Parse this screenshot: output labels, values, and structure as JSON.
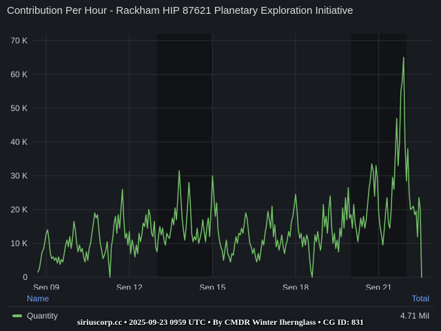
{
  "panel": {
    "title": "Contribution Per Hour  -  Rackham HIP 87621 Planetary Exploration Initiative"
  },
  "legend": {
    "name_header": "Name",
    "total_header": "Total",
    "series_name": "Quantity",
    "series_total": "4.71 Mil"
  },
  "footer": {
    "text": "siriuscorp.cc • 2025-09-23 0959 UTC • By CMDR Winter Ihernglass • CG ID: 831"
  },
  "colors": {
    "background": "#181b1f",
    "grid": "#2c3035",
    "shade": "#111316",
    "series": "#73bf69",
    "axis_text": "#ccccdc"
  },
  "chart_data": {
    "type": "line",
    "title": "Contribution Per Hour  -  Rackham HIP 87621 Planetary Exploration Initiative",
    "x_unit": "days (Sep 2025)",
    "x_ticks": [
      {
        "value": 9,
        "label": "Sep 09"
      },
      {
        "value": 12,
        "label": "Sep 12"
      },
      {
        "value": 15,
        "label": "Sep 15"
      },
      {
        "value": 18,
        "label": "Sep 18"
      },
      {
        "value": 21,
        "label": "Sep 21"
      }
    ],
    "y_ticks": [
      {
        "value": 0,
        "label": "0"
      },
      {
        "value": 10000,
        "label": "10 K"
      },
      {
        "value": 20000,
        "label": "20 K"
      },
      {
        "value": 30000,
        "label": "30 K"
      },
      {
        "value": 40000,
        "label": "40 K"
      },
      {
        "value": 50000,
        "label": "50 K"
      },
      {
        "value": 60000,
        "label": "60 K"
      },
      {
        "value": 70000,
        "label": "70 K"
      }
    ],
    "xlim": [
      8.5,
      22.9
    ],
    "ylim": [
      0,
      72000
    ],
    "shaded_ranges": [
      [
        13.0,
        15.0
      ],
      [
        20.0,
        22.0
      ]
    ],
    "grid": true,
    "legend_position": "bottom",
    "series": [
      {
        "name": "Quantity",
        "points": [
          [
            8.7,
            1500
          ],
          [
            8.75,
            2500
          ],
          [
            8.8,
            5000
          ],
          [
            8.85,
            7500
          ],
          [
            8.9,
            8200
          ],
          [
            8.95,
            10500
          ],
          [
            9.0,
            13000
          ],
          [
            9.05,
            14000
          ],
          [
            9.1,
            11000
          ],
          [
            9.15,
            7000
          ],
          [
            9.2,
            5500
          ],
          [
            9.25,
            6000
          ],
          [
            9.3,
            5000
          ],
          [
            9.35,
            5800
          ],
          [
            9.4,
            4200
          ],
          [
            9.45,
            6000
          ],
          [
            9.5,
            3800
          ],
          [
            9.55,
            5200
          ],
          [
            9.6,
            4500
          ],
          [
            9.65,
            7000
          ],
          [
            9.7,
            9500
          ],
          [
            9.75,
            11000
          ],
          [
            9.8,
            9000
          ],
          [
            9.85,
            12000
          ],
          [
            9.9,
            8500
          ],
          [
            9.95,
            11500
          ],
          [
            10.0,
            16500
          ],
          [
            10.05,
            14000
          ],
          [
            10.1,
            10000
          ],
          [
            10.15,
            7500
          ],
          [
            10.2,
            9500
          ],
          [
            10.25,
            7500
          ],
          [
            10.3,
            8500
          ],
          [
            10.35,
            6000
          ],
          [
            10.4,
            4500
          ],
          [
            10.45,
            7500
          ],
          [
            10.5,
            5000
          ],
          [
            10.55,
            8500
          ],
          [
            10.6,
            10000
          ],
          [
            10.65,
            13000
          ],
          [
            10.7,
            16000
          ],
          [
            10.75,
            19000
          ],
          [
            10.8,
            17500
          ],
          [
            10.85,
            18500
          ],
          [
            10.9,
            14000
          ],
          [
            10.95,
            10000
          ],
          [
            11.0,
            8000
          ],
          [
            11.05,
            5500
          ],
          [
            11.1,
            6500
          ],
          [
            11.15,
            8000
          ],
          [
            11.2,
            10500
          ],
          [
            11.25,
            4500
          ],
          [
            11.3,
            0
          ],
          [
            11.35,
            9000
          ],
          [
            11.4,
            11500
          ],
          [
            11.45,
            16000
          ],
          [
            11.5,
            18000
          ],
          [
            11.55,
            13000
          ],
          [
            11.6,
            18500
          ],
          [
            11.65,
            14500
          ],
          [
            11.7,
            20500
          ],
          [
            11.75,
            26000
          ],
          [
            11.8,
            17000
          ],
          [
            11.85,
            11500
          ],
          [
            11.9,
            13000
          ],
          [
            11.95,
            9500
          ],
          [
            12.0,
            13500
          ],
          [
            12.05,
            7000
          ],
          [
            12.1,
            11000
          ],
          [
            12.15,
            9000
          ],
          [
            12.2,
            6000
          ],
          [
            12.25,
            9500
          ],
          [
            12.3,
            7000
          ],
          [
            12.35,
            13000
          ],
          [
            12.4,
            10500
          ],
          [
            12.45,
            12500
          ],
          [
            12.5,
            16000
          ],
          [
            12.55,
            15000
          ],
          [
            12.6,
            18500
          ],
          [
            12.65,
            14500
          ],
          [
            12.7,
            20000
          ],
          [
            12.75,
            18000
          ],
          [
            12.8,
            13000
          ],
          [
            12.85,
            12000
          ],
          [
            12.9,
            16500
          ],
          [
            12.95,
            9000
          ],
          [
            13.0,
            7500
          ],
          [
            13.05,
            12000
          ],
          [
            13.1,
            15000
          ],
          [
            13.15,
            12500
          ],
          [
            13.2,
            14500
          ],
          [
            13.25,
            11000
          ],
          [
            13.3,
            9500
          ],
          [
            13.35,
            13000
          ],
          [
            13.4,
            12000
          ],
          [
            13.45,
            11500
          ],
          [
            13.5,
            14000
          ],
          [
            13.55,
            17500
          ],
          [
            13.6,
            15500
          ],
          [
            13.65,
            20500
          ],
          [
            13.7,
            17000
          ],
          [
            13.75,
            23500
          ],
          [
            13.8,
            31500
          ],
          [
            13.85,
            25000
          ],
          [
            13.9,
            18000
          ],
          [
            13.95,
            14000
          ],
          [
            14.0,
            11000
          ],
          [
            14.05,
            15000
          ],
          [
            14.1,
            21000
          ],
          [
            14.15,
            28000
          ],
          [
            14.2,
            22000
          ],
          [
            14.25,
            13000
          ],
          [
            14.3,
            10500
          ],
          [
            14.35,
            12000
          ],
          [
            14.4,
            11000
          ],
          [
            14.45,
            14500
          ],
          [
            14.5,
            10000
          ],
          [
            14.55,
            11500
          ],
          [
            14.6,
            13500
          ],
          [
            14.65,
            17000
          ],
          [
            14.7,
            13500
          ],
          [
            14.75,
            10500
          ],
          [
            14.8,
            15000
          ],
          [
            14.85,
            17500
          ],
          [
            14.9,
            12000
          ],
          [
            14.95,
            20000
          ],
          [
            15.0,
            30000
          ],
          [
            15.05,
            24000
          ],
          [
            15.1,
            18000
          ],
          [
            15.15,
            22000
          ],
          [
            15.2,
            14000
          ],
          [
            15.25,
            11000
          ],
          [
            15.3,
            9000
          ],
          [
            15.35,
            8000
          ],
          [
            15.4,
            5000
          ],
          [
            15.45,
            8000
          ],
          [
            15.5,
            11000
          ],
          [
            15.55,
            7000
          ],
          [
            15.6,
            6000
          ],
          [
            15.65,
            4500
          ],
          [
            15.7,
            7000
          ],
          [
            15.75,
            6500
          ],
          [
            15.8,
            9500
          ],
          [
            15.85,
            12000
          ],
          [
            15.9,
            10000
          ],
          [
            15.95,
            13000
          ],
          [
            16.0,
            12500
          ],
          [
            16.05,
            14500
          ],
          [
            16.1,
            13000
          ],
          [
            16.15,
            16000
          ],
          [
            16.2,
            19000
          ],
          [
            16.25,
            17500
          ],
          [
            16.3,
            13500
          ],
          [
            16.35,
            10000
          ],
          [
            16.4,
            9000
          ],
          [
            16.45,
            7000
          ],
          [
            16.5,
            8500
          ],
          [
            16.55,
            6000
          ],
          [
            16.6,
            4500
          ],
          [
            16.65,
            7000
          ],
          [
            16.7,
            5000
          ],
          [
            16.75,
            8000
          ],
          [
            16.8,
            11000
          ],
          [
            16.85,
            9500
          ],
          [
            16.9,
            13000
          ],
          [
            16.95,
            15500
          ],
          [
            17.0,
            19500
          ],
          [
            17.05,
            17000
          ],
          [
            17.1,
            14500
          ],
          [
            17.15,
            21000
          ],
          [
            17.2,
            12000
          ],
          [
            17.25,
            15500
          ],
          [
            17.3,
            9000
          ],
          [
            17.35,
            11000
          ],
          [
            17.4,
            8000
          ],
          [
            17.45,
            10000
          ],
          [
            17.5,
            12500
          ],
          [
            17.55,
            9000
          ],
          [
            17.6,
            7000
          ],
          [
            17.65,
            9500
          ],
          [
            17.7,
            11000
          ],
          [
            17.75,
            13500
          ],
          [
            17.8,
            12000
          ],
          [
            17.85,
            16500
          ],
          [
            17.9,
            18000
          ],
          [
            17.95,
            21000
          ],
          [
            18.0,
            24500
          ],
          [
            18.05,
            20000
          ],
          [
            18.1,
            14000
          ],
          [
            18.15,
            11500
          ],
          [
            18.2,
            13000
          ],
          [
            18.25,
            9000
          ],
          [
            18.3,
            12000
          ],
          [
            18.35,
            9500
          ],
          [
            18.4,
            12500
          ],
          [
            18.45,
            11000
          ],
          [
            18.5,
            6000
          ],
          [
            18.55,
            2000
          ],
          [
            18.6,
            0
          ],
          [
            18.65,
            6000
          ],
          [
            18.7,
            12500
          ],
          [
            18.75,
            10500
          ],
          [
            18.8,
            13500
          ],
          [
            18.85,
            10000
          ],
          [
            18.9,
            8000
          ],
          [
            18.95,
            12000
          ],
          [
            19.0,
            21500
          ],
          [
            19.05,
            15000
          ],
          [
            19.1,
            18000
          ],
          [
            19.15,
            13000
          ],
          [
            19.2,
            20000
          ],
          [
            19.25,
            24000
          ],
          [
            19.3,
            15000
          ],
          [
            19.35,
            10000
          ],
          [
            19.4,
            13000
          ],
          [
            19.45,
            8500
          ],
          [
            19.5,
            11000
          ],
          [
            19.55,
            7500
          ],
          [
            19.6,
            14500
          ],
          [
            19.65,
            12000
          ],
          [
            19.7,
            20500
          ],
          [
            19.75,
            14500
          ],
          [
            19.8,
            23500
          ],
          [
            19.85,
            17000
          ],
          [
            19.9,
            26500
          ],
          [
            19.95,
            17500
          ],
          [
            20.0,
            18500
          ],
          [
            20.05,
            14500
          ],
          [
            20.1,
            21500
          ],
          [
            20.15,
            16000
          ],
          [
            20.2,
            13500
          ],
          [
            20.25,
            10500
          ],
          [
            20.3,
            14000
          ],
          [
            20.35,
            17500
          ],
          [
            20.4,
            15000
          ],
          [
            20.45,
            18000
          ],
          [
            20.5,
            14500
          ],
          [
            20.55,
            17000
          ],
          [
            20.6,
            21500
          ],
          [
            20.65,
            26000
          ],
          [
            20.7,
            29000
          ],
          [
            20.75,
            33500
          ],
          [
            20.8,
            31500
          ],
          [
            20.85,
            24000
          ],
          [
            20.9,
            33000
          ],
          [
            20.95,
            29500
          ],
          [
            21.0,
            19000
          ],
          [
            21.05,
            15000
          ],
          [
            21.1,
            12500
          ],
          [
            21.15,
            9500
          ],
          [
            21.2,
            14000
          ],
          [
            21.25,
            19500
          ],
          [
            21.3,
            23500
          ],
          [
            21.35,
            16000
          ],
          [
            21.4,
            14500
          ],
          [
            21.45,
            20000
          ],
          [
            21.5,
            29500
          ],
          [
            21.55,
            26000
          ],
          [
            21.6,
            36000
          ],
          [
            21.65,
            47000
          ],
          [
            21.7,
            33000
          ],
          [
            21.75,
            40000
          ],
          [
            21.8,
            55000
          ],
          [
            21.85,
            58000
          ],
          [
            21.9,
            65000
          ],
          [
            21.95,
            40000
          ],
          [
            22.0,
            28500
          ],
          [
            22.05,
            38000
          ],
          [
            22.1,
            25000
          ],
          [
            22.15,
            20000
          ],
          [
            22.2,
            20500
          ],
          [
            22.25,
            21000
          ],
          [
            22.3,
            18500
          ],
          [
            22.35,
            19500
          ],
          [
            22.4,
            12000
          ],
          [
            22.45,
            23500
          ],
          [
            22.5,
            20000
          ],
          [
            22.55,
            0
          ]
        ]
      }
    ]
  }
}
